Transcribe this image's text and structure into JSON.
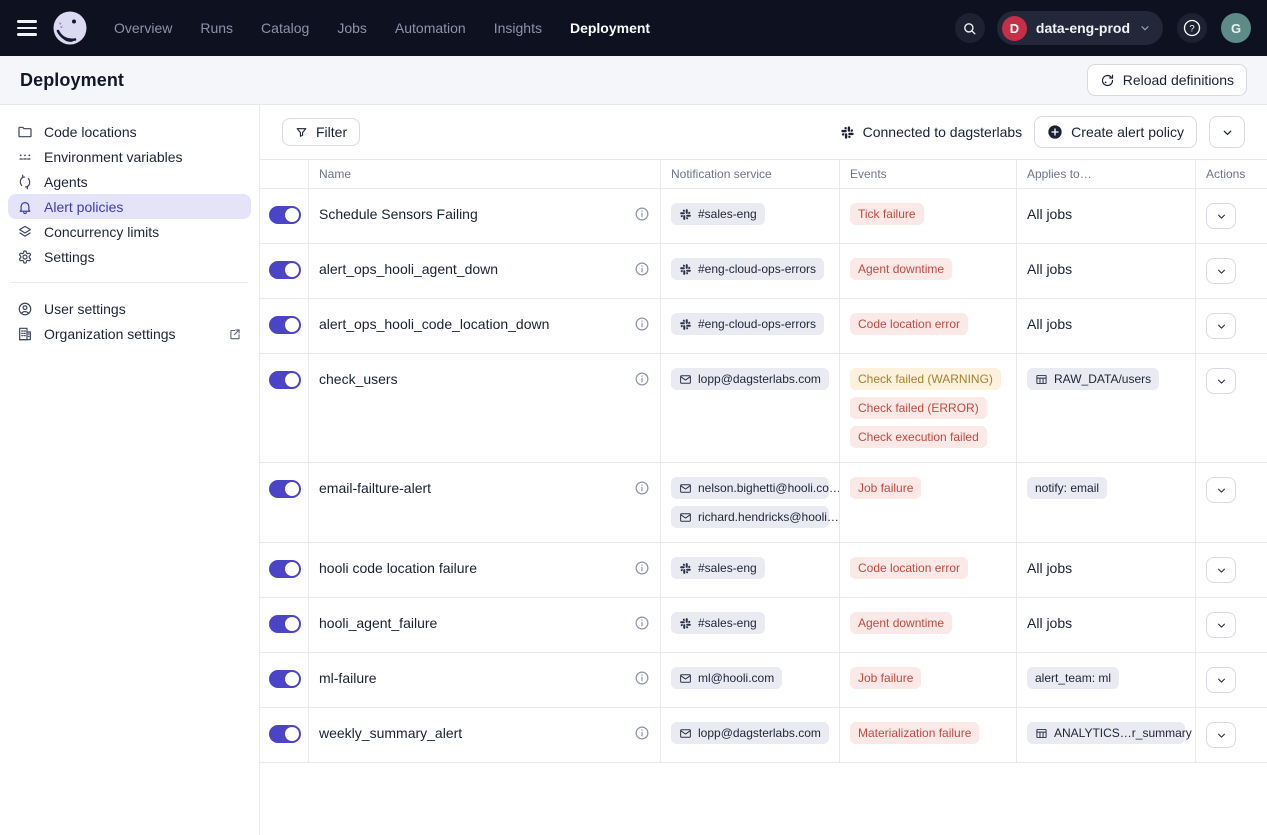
{
  "topnav": {
    "items": [
      {
        "label": "Overview",
        "active": false
      },
      {
        "label": "Runs",
        "active": false
      },
      {
        "label": "Catalog",
        "active": false
      },
      {
        "label": "Jobs",
        "active": false
      },
      {
        "label": "Automation",
        "active": false
      },
      {
        "label": "Insights",
        "active": false
      },
      {
        "label": "Deployment",
        "active": true
      }
    ],
    "workspace": {
      "initial": "D",
      "name": "data-eng-prod"
    },
    "avatar_initial": "G",
    "icons": [
      "menu-icon",
      "dagster-logo",
      "search-icon",
      "help-icon"
    ]
  },
  "page_header": {
    "title": "Deployment",
    "reload_button": "Reload definitions"
  },
  "sidebar": {
    "primary": [
      {
        "label": "Code locations",
        "icon": "folder-icon",
        "active": false
      },
      {
        "label": "Environment variables",
        "icon": "env-vars-icon",
        "active": false
      },
      {
        "label": "Agents",
        "icon": "sync-icon",
        "active": false
      },
      {
        "label": "Alert policies",
        "icon": "bell-icon",
        "active": true
      },
      {
        "label": "Concurrency limits",
        "icon": "layers-icon",
        "active": false
      },
      {
        "label": "Settings",
        "icon": "gear-icon",
        "active": false
      }
    ],
    "secondary": [
      {
        "label": "User settings",
        "icon": "user-icon",
        "external": false
      },
      {
        "label": "Organization settings",
        "icon": "building-icon",
        "external": true
      }
    ]
  },
  "toolbar": {
    "filter_button": "Filter",
    "connection_status": "Connected to dagsterlabs",
    "create_button": "Create alert policy"
  },
  "table": {
    "columns": [
      "Name",
      "Notification service",
      "Events",
      "Applies to…",
      "Actions"
    ],
    "rows": [
      {
        "name": "Schedule Sensors Failing",
        "enabled": true,
        "notifications": [
          {
            "icon": "slack",
            "label": "#sales-eng"
          }
        ],
        "events": [
          {
            "label": "Tick failure",
            "tone": "red"
          }
        ],
        "applies": {
          "kind": "text",
          "label": "All jobs"
        }
      },
      {
        "name": "alert_ops_hooli_agent_down",
        "enabled": true,
        "notifications": [
          {
            "icon": "slack",
            "label": "#eng-cloud-ops-errors"
          }
        ],
        "events": [
          {
            "label": "Agent downtime",
            "tone": "red"
          }
        ],
        "applies": {
          "kind": "text",
          "label": "All jobs"
        }
      },
      {
        "name": "alert_ops_hooli_code_location_down",
        "enabled": true,
        "notifications": [
          {
            "icon": "slack",
            "label": "#eng-cloud-ops-errors"
          }
        ],
        "events": [
          {
            "label": "Code location error",
            "tone": "red"
          }
        ],
        "applies": {
          "kind": "text",
          "label": "All jobs"
        }
      },
      {
        "name": "check_users",
        "enabled": true,
        "notifications": [
          {
            "icon": "email",
            "label": "lopp@dagsterlabs.com"
          }
        ],
        "events": [
          {
            "label": "Check failed (WARNING)",
            "tone": "amber"
          },
          {
            "label": "Check failed (ERROR)",
            "tone": "red"
          },
          {
            "label": "Check execution failed",
            "tone": "red"
          }
        ],
        "applies": {
          "kind": "asset",
          "label": "RAW_DATA/users"
        }
      },
      {
        "name": "email-failture-alert",
        "enabled": true,
        "notifications": [
          {
            "icon": "email",
            "label": "nelson.bighetti@hooli.co…"
          },
          {
            "icon": "email",
            "label": "richard.hendricks@hooli…"
          }
        ],
        "events": [
          {
            "label": "Job failure",
            "tone": "red"
          }
        ],
        "applies": {
          "kind": "tag",
          "label": "notify: email"
        }
      },
      {
        "name": "hooli code location failure",
        "enabled": true,
        "notifications": [
          {
            "icon": "slack",
            "label": "#sales-eng"
          }
        ],
        "events": [
          {
            "label": "Code location error",
            "tone": "red"
          }
        ],
        "applies": {
          "kind": "text",
          "label": "All jobs"
        }
      },
      {
        "name": "hooli_agent_failure",
        "enabled": true,
        "notifications": [
          {
            "icon": "slack",
            "label": "#sales-eng"
          }
        ],
        "events": [
          {
            "label": "Agent downtime",
            "tone": "red"
          }
        ],
        "applies": {
          "kind": "text",
          "label": "All jobs"
        }
      },
      {
        "name": "ml-failure",
        "enabled": true,
        "notifications": [
          {
            "icon": "email",
            "label": "ml@hooli.com"
          }
        ],
        "events": [
          {
            "label": "Job failure",
            "tone": "red"
          }
        ],
        "applies": {
          "kind": "tag",
          "label": "alert_team: ml"
        }
      },
      {
        "name": "weekly_summary_alert",
        "enabled": true,
        "notifications": [
          {
            "icon": "email",
            "label": "lopp@dagsterlabs.com"
          }
        ],
        "events": [
          {
            "label": "Materialization failure",
            "tone": "red"
          }
        ],
        "applies": {
          "kind": "asset",
          "label": "ANALYTICS…r_summary"
        }
      }
    ]
  },
  "colors": {
    "topnav_bg": "#0D1120",
    "accent_indigo": "#4A45C7",
    "selected_sidebar_bg": "#E5E3F8",
    "badge_gray_bg": "#E9EAF2",
    "badge_red_bg": "#FAE9E7",
    "badge_red_text": "#BE4B41",
    "badge_amber_bg": "#FBF1DC",
    "badge_amber_text": "#A8802F",
    "workspace_dot": "#C52F48",
    "avatar_bg": "#5E8A88"
  }
}
